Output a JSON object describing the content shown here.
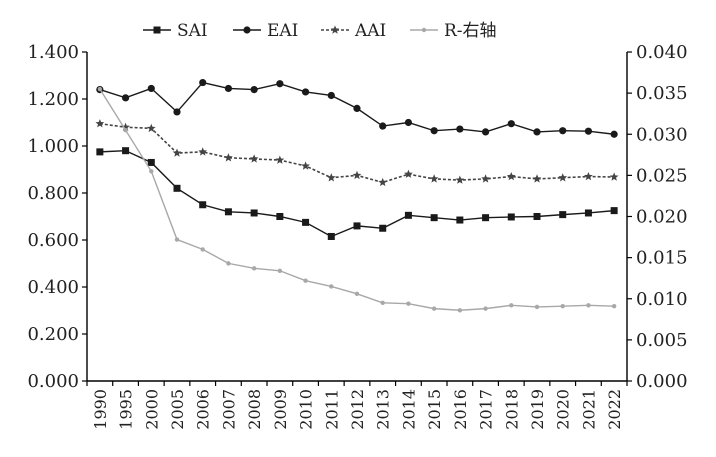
{
  "chart_data": {
    "type": "line",
    "categories": [
      "1990",
      "1995",
      "2000",
      "2005",
      "2006",
      "2007",
      "2008",
      "2009",
      "2010",
      "2011",
      "2012",
      "2013",
      "2014",
      "2015",
      "2016",
      "2017",
      "2018",
      "2019",
      "2020",
      "2021",
      "2022"
    ],
    "y_left": {
      "ylim": [
        0,
        1.4
      ],
      "ticks": [
        0,
        0.2,
        0.4,
        0.6,
        0.8,
        1.0,
        1.2,
        1.4
      ],
      "tick_labels": [
        "0.000",
        "0.200",
        "0.400",
        "0.600",
        "0.800",
        "1.000",
        "1.200",
        "1.400"
      ]
    },
    "y_right": {
      "ylim": [
        0,
        0.04
      ],
      "ticks": [
        0,
        0.005,
        0.01,
        0.015,
        0.02,
        0.025,
        0.03,
        0.035,
        0.04
      ],
      "tick_labels": [
        "0.000",
        "0.005",
        "0.010",
        "0.015",
        "0.020",
        "0.025",
        "0.030",
        "0.035",
        "0.040"
      ]
    },
    "legend_position": "top",
    "series": [
      {
        "name": "SAI",
        "axis": "left",
        "color": "#1a1a1a",
        "line_style": "solid",
        "marker": "square",
        "values": [
          0.975,
          0.98,
          0.93,
          0.82,
          0.75,
          0.72,
          0.715,
          0.7,
          0.675,
          0.615,
          0.66,
          0.65,
          0.705,
          0.695,
          0.685,
          0.695,
          0.698,
          0.7,
          0.708,
          0.715,
          0.725
        ]
      },
      {
        "name": "EAI",
        "axis": "left",
        "color": "#1a1a1a",
        "line_style": "solid",
        "marker": "circle",
        "values": [
          1.24,
          1.205,
          1.245,
          1.145,
          1.27,
          1.245,
          1.24,
          1.265,
          1.23,
          1.215,
          1.16,
          1.085,
          1.1,
          1.065,
          1.072,
          1.06,
          1.095,
          1.06,
          1.065,
          1.063,
          1.05
        ]
      },
      {
        "name": "AAI",
        "axis": "left",
        "color": "#444444",
        "line_style": "dotted",
        "marker": "star",
        "values": [
          1.095,
          1.08,
          1.075,
          0.97,
          0.975,
          0.95,
          0.945,
          0.94,
          0.915,
          0.865,
          0.875,
          0.845,
          0.88,
          0.86,
          0.855,
          0.86,
          0.87,
          0.86,
          0.865,
          0.87,
          0.868
        ]
      },
      {
        "name": "R-右轴",
        "axis": "right",
        "color": "#a8a8a8",
        "line_style": "solid",
        "marker": "small-dot",
        "values": [
          0.0355,
          0.0305,
          0.0255,
          0.0172,
          0.016,
          0.0143,
          0.0137,
          0.0134,
          0.0122,
          0.0115,
          0.0106,
          0.0095,
          0.0094,
          0.0088,
          0.0086,
          0.0088,
          0.0092,
          0.009,
          0.0091,
          0.0092,
          0.0091
        ]
      }
    ]
  }
}
